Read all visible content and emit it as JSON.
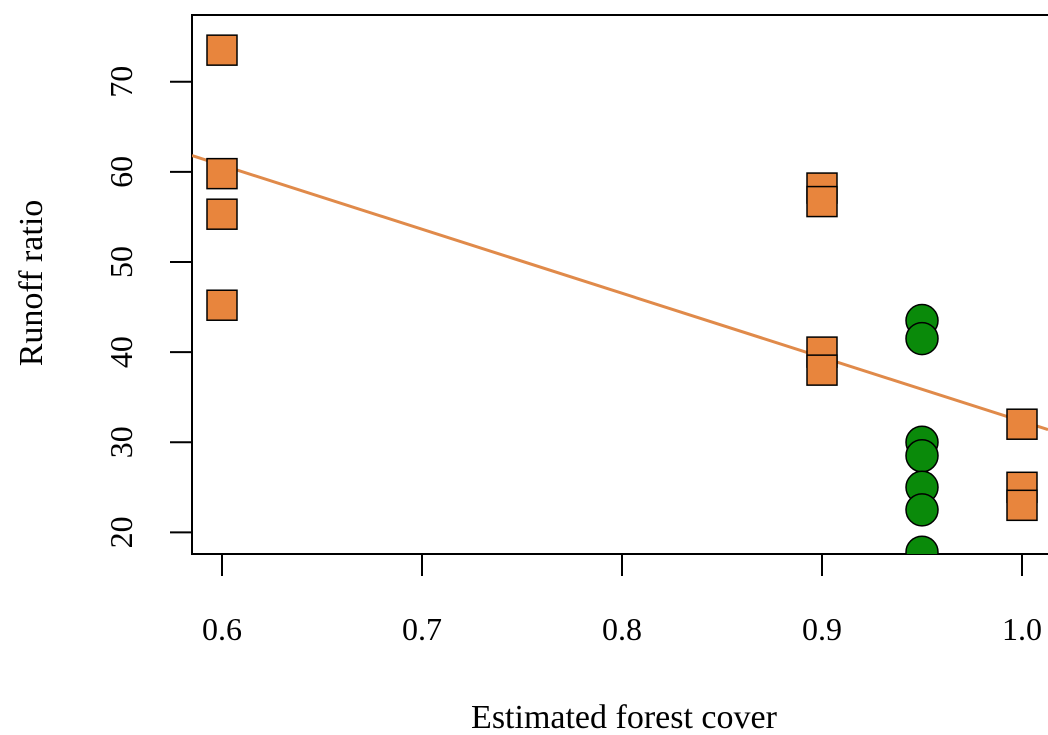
{
  "chart_data": {
    "type": "scatter",
    "title": "",
    "xlabel": "Estimated forest cover",
    "ylabel": "Runoff ratio",
    "xlim": [
      0.585,
      1.013
    ],
    "ylim": [
      17.6,
      77.4
    ],
    "xticks": [
      0.6,
      0.7,
      0.8,
      0.9,
      1.0
    ],
    "xtick_labels": [
      "0.6",
      "0.7",
      "0.8",
      "0.9",
      "1.0"
    ],
    "yticks": [
      20,
      30,
      40,
      50,
      60,
      70
    ],
    "ytick_labels": [
      "20",
      "30",
      "40",
      "50",
      "60",
      "70"
    ],
    "grid": false,
    "legend": "none",
    "series": [
      {
        "marker": "square",
        "color": "#E8853D",
        "points": [
          {
            "x": 0.6,
            "y": 73.5
          },
          {
            "x": 0.6,
            "y": 59.8
          },
          {
            "x": 0.6,
            "y": 55.3
          },
          {
            "x": 0.6,
            "y": 45.2
          },
          {
            "x": 0.9,
            "y": 58.2
          },
          {
            "x": 0.9,
            "y": 56.7
          },
          {
            "x": 0.9,
            "y": 40.0
          },
          {
            "x": 0.9,
            "y": 38.0
          },
          {
            "x": 1.0,
            "y": 32.0
          },
          {
            "x": 1.0,
            "y": 25.0
          },
          {
            "x": 1.0,
            "y": 23.0
          }
        ]
      },
      {
        "marker": "circle",
        "color": "#0A8A0A",
        "points": [
          {
            "x": 0.95,
            "y": 43.5
          },
          {
            "x": 0.95,
            "y": 41.5
          },
          {
            "x": 0.95,
            "y": 30.0
          },
          {
            "x": 0.95,
            "y": 28.5
          },
          {
            "x": 0.95,
            "y": 25.0
          },
          {
            "x": 0.95,
            "y": 22.5
          },
          {
            "x": 0.95,
            "y": 17.8
          }
        ]
      }
    ],
    "trendline": {
      "color": "#E08A4A",
      "x": [
        0.585,
        1.013
      ],
      "y": [
        61.8,
        31.4
      ]
    }
  }
}
